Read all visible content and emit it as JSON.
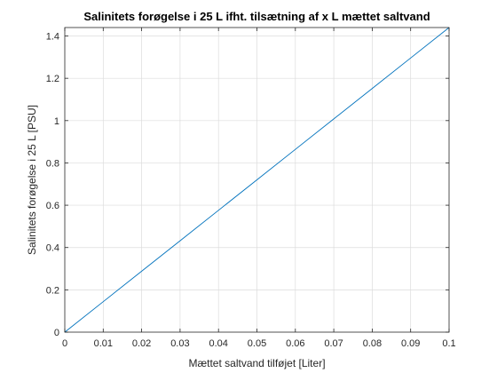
{
  "chart_data": {
    "type": "line",
    "title": "Salinitets forøgelse i 25 L ifht. tilsætning af x L mættet saltvand",
    "xlabel": "Mættet saltvand tilføjet [Liter]",
    "ylabel": "Salinitets forøgelse i 25 L [PSU]",
    "xlim": [
      0,
      0.1
    ],
    "ylim": [
      0,
      1.44
    ],
    "grid": true,
    "x_ticks": [
      0,
      0.01,
      0.02,
      0.03,
      0.04,
      0.05,
      0.06,
      0.07,
      0.08,
      0.09,
      0.1
    ],
    "x_tick_labels": [
      "0",
      "0.01",
      "0.02",
      "0.03",
      "0.04",
      "0.05",
      "0.06",
      "0.07",
      "0.08",
      "0.09",
      "0.1"
    ],
    "y_ticks": [
      0,
      0.2,
      0.4,
      0.6,
      0.8,
      1.0,
      1.2,
      1.4
    ],
    "y_tick_labels": [
      "0",
      "0.2",
      "0.4",
      "0.6",
      "0.8",
      "1",
      "1.2",
      "1.4"
    ],
    "series": [
      {
        "color": "#0072BD",
        "x": [
          0,
          0.01,
          0.02,
          0.03,
          0.04,
          0.05,
          0.06,
          0.07,
          0.08,
          0.09,
          0.1
        ],
        "y": [
          0,
          0.144,
          0.288,
          0.432,
          0.576,
          0.72,
          0.864,
          1.008,
          1.152,
          1.296,
          1.44
        ]
      }
    ]
  }
}
